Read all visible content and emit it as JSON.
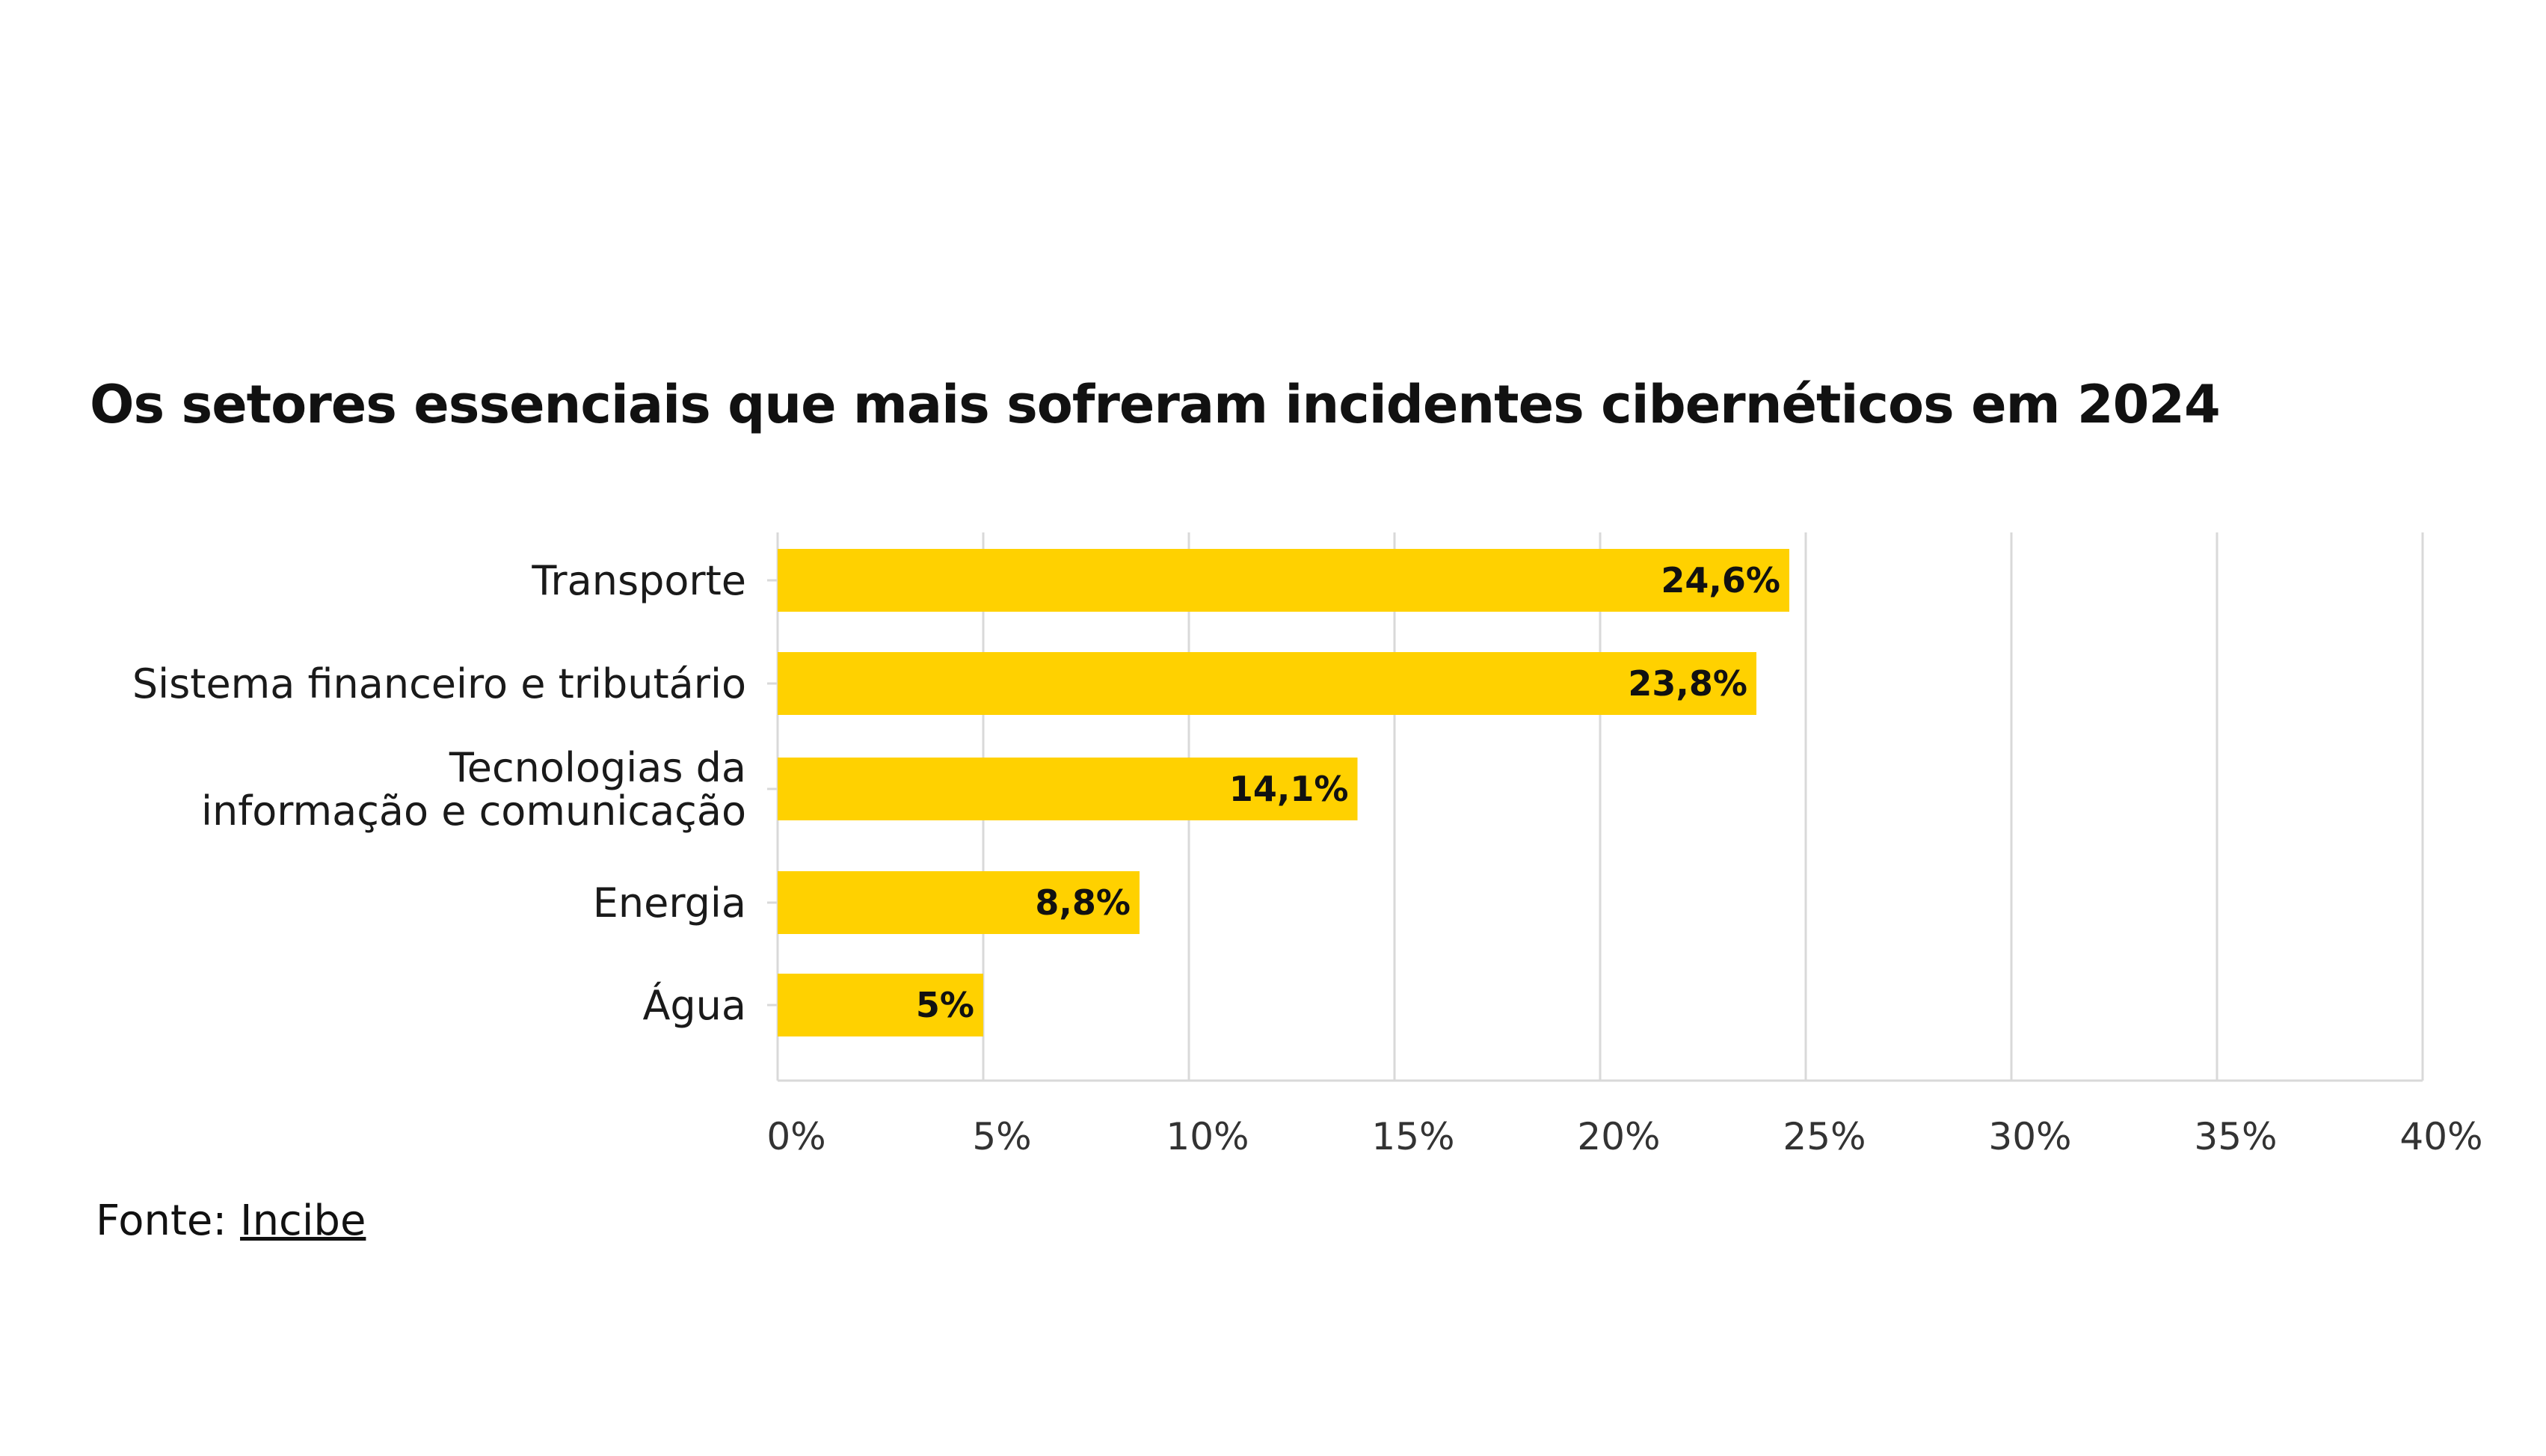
{
  "chart_data": {
    "type": "bar",
    "orientation": "horizontal",
    "title": "Os setores essenciais que mais sofreram incidentes cibernéticos em 2024",
    "categories": [
      [
        "Transporte"
      ],
      [
        "Sistema financeiro e tributário"
      ],
      [
        "Tecnologias da",
        "informação e comunicação"
      ],
      [
        "Energia"
      ],
      [
        "Água"
      ]
    ],
    "values": [
      24.6,
      23.8,
      14.1,
      8.8,
      5
    ],
    "value_labels": [
      "24,6%",
      "23,8%",
      "14,1%",
      "8,8%",
      "5%"
    ],
    "xlim": [
      0,
      40
    ],
    "x_ticks": [
      0,
      5,
      10,
      15,
      20,
      25,
      30,
      35,
      40
    ],
    "x_tick_labels": [
      "0%",
      "5%",
      "10%",
      "15%",
      "20%",
      "25%",
      "30%",
      "35%",
      "40%"
    ],
    "xlabel": "",
    "ylabel": "",
    "grid": "vertical",
    "bar_color": "#FFD100",
    "grid_color": "#d9d9d9"
  },
  "source": {
    "prefix": "Fonte: ",
    "link_text": "Incibe"
  }
}
